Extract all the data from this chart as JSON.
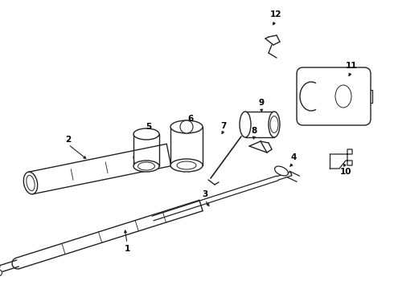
{
  "background_color": "#ffffff",
  "line_color": "#222222",
  "fig_width": 4.9,
  "fig_height": 3.6,
  "dpi": 100
}
